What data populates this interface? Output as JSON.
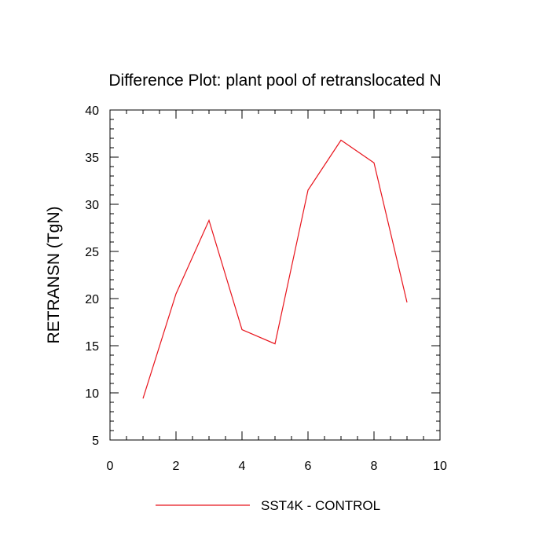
{
  "chart_data": {
    "type": "line",
    "title": "Difference Plot: plant pool of retranslocated N",
    "xlabel": "",
    "ylabel": "RETRANSN  (TgN)",
    "xlim": [
      0,
      10
    ],
    "ylim": [
      5,
      40
    ],
    "x_ticks": [
      0,
      2,
      4,
      6,
      8,
      10
    ],
    "y_ticks": [
      5,
      10,
      15,
      20,
      25,
      30,
      35,
      40
    ],
    "grid": false,
    "legend_position": "bottom",
    "series": [
      {
        "name": "SST4K - CONTROL",
        "color": "#e8141c",
        "x": [
          1,
          2,
          3,
          4,
          5,
          6,
          7,
          8,
          9
        ],
        "y": [
          9.4,
          20.5,
          28.3,
          16.7,
          15.2,
          31.5,
          36.8,
          34.4,
          19.6
        ]
      }
    ]
  }
}
